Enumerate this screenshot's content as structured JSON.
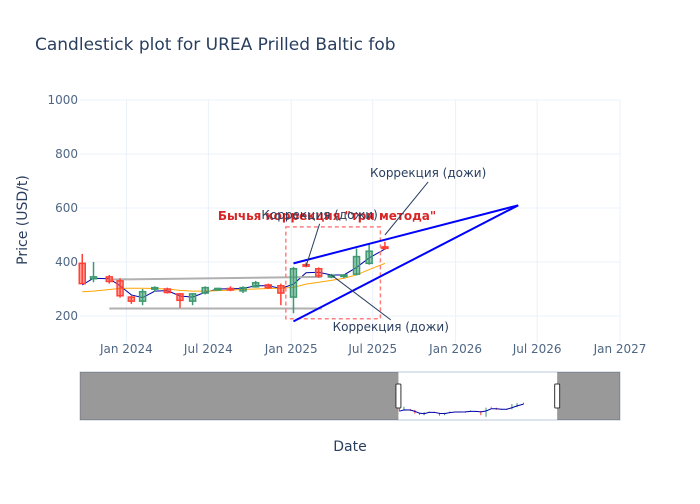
{
  "chart_data": {
    "type": "candlestick",
    "title": "Candlestick plot for UREA Prilled Baltic fob",
    "xlabel": "Date",
    "ylabel": "Price (USD/t)",
    "ylim": [
      100,
      1000
    ],
    "xlim": [
      "2023-09-20",
      "2027-01-01"
    ],
    "y_ticks": [
      200,
      400,
      600,
      800,
      1000
    ],
    "x_ticks": [
      {
        "date": "2024-01-01",
        "label": "Jan 2024"
      },
      {
        "date": "2024-07-01",
        "label": "Jul 2024"
      },
      {
        "date": "2025-01-01",
        "label": "Jan 2025"
      },
      {
        "date": "2025-07-01",
        "label": "Jul 2025"
      },
      {
        "date": "2026-01-01",
        "label": "Jan 2026"
      },
      {
        "date": "2026-07-01",
        "label": "Jul 2026"
      },
      {
        "date": "2027-01-01",
        "label": "Jan 2027"
      }
    ],
    "grid": true,
    "colors": {
      "increasing": "#3d9970",
      "decreasing": "#ff4136",
      "moving_average_fast": "#0000aa",
      "moving_average_slow": "#ffa500",
      "trend_lines": "#0000ff",
      "support_resistance": "#b0b0b0",
      "pattern_box": "#ff7f7f",
      "pattern_label": "#d62728",
      "annotation": "#2a3f5f"
    },
    "candles": [
      {
        "date": "2023-09-25",
        "open": 395,
        "high": 430,
        "low": 320,
        "close": 320
      },
      {
        "date": "2023-10-20",
        "open": 338,
        "high": 400,
        "low": 325,
        "close": 345
      },
      {
        "date": "2023-11-24",
        "open": 345,
        "high": 352,
        "low": 320,
        "close": 328
      },
      {
        "date": "2023-12-18",
        "open": 330,
        "high": 340,
        "low": 268,
        "close": 275
      },
      {
        "date": "2024-01-12",
        "open": 270,
        "high": 275,
        "low": 245,
        "close": 255
      },
      {
        "date": "2024-02-06",
        "open": 255,
        "high": 300,
        "low": 240,
        "close": 290
      },
      {
        "date": "2024-03-04",
        "open": 300,
        "high": 310,
        "low": 290,
        "close": 305
      },
      {
        "date": "2024-04-01",
        "open": 300,
        "high": 305,
        "low": 283,
        "close": 287
      },
      {
        "date": "2024-04-29",
        "open": 282,
        "high": 285,
        "low": 230,
        "close": 258
      },
      {
        "date": "2024-05-27",
        "open": 255,
        "high": 285,
        "low": 240,
        "close": 282
      },
      {
        "date": "2024-06-24",
        "open": 285,
        "high": 310,
        "low": 280,
        "close": 305
      },
      {
        "date": "2024-07-22",
        "open": 300,
        "high": 305,
        "low": 295,
        "close": 302
      },
      {
        "date": "2024-08-19",
        "open": 302,
        "high": 310,
        "low": 292,
        "close": 298
      },
      {
        "date": "2024-09-16",
        "open": 293,
        "high": 310,
        "low": 285,
        "close": 305
      },
      {
        "date": "2024-10-14",
        "open": 308,
        "high": 330,
        "low": 305,
        "close": 323
      },
      {
        "date": "2024-11-11",
        "open": 315,
        "high": 320,
        "low": 300,
        "close": 305
      },
      {
        "date": "2024-12-09",
        "open": 312,
        "high": 320,
        "low": 240,
        "close": 285
      },
      {
        "date": "2025-01-06",
        "open": 270,
        "high": 382,
        "low": 210,
        "close": 375
      },
      {
        "date": "2025-02-03",
        "open": 390,
        "high": 398,
        "low": 380,
        "close": 385
      },
      {
        "date": "2025-03-03",
        "open": 375,
        "high": 380,
        "low": 342,
        "close": 348
      },
      {
        "date": "2025-03-31",
        "open": 345,
        "high": 356,
        "low": 340,
        "close": 350
      },
      {
        "date": "2025-04-28",
        "open": 348,
        "high": 355,
        "low": 340,
        "close": 352
      },
      {
        "date": "2025-05-26",
        "open": 355,
        "high": 450,
        "low": 350,
        "close": 420
      },
      {
        "date": "2025-06-23",
        "open": 395,
        "high": 468,
        "low": 390,
        "close": 440
      },
      {
        "date": "2025-07-28",
        "open": 456,
        "high": 475,
        "low": 445,
        "close": 454
      }
    ],
    "moving_averages": [
      {
        "name": "fast",
        "points": [
          [
            "2023-09-25",
            315
          ],
          [
            "2023-10-20",
            340
          ],
          [
            "2023-11-24",
            338
          ],
          [
            "2023-12-18",
            312
          ],
          [
            "2024-01-12",
            278
          ],
          [
            "2024-02-06",
            268
          ],
          [
            "2024-03-04",
            292
          ],
          [
            "2024-04-01",
            294
          ],
          [
            "2024-04-29",
            274
          ],
          [
            "2024-05-27",
            270
          ],
          [
            "2024-06-24",
            288
          ],
          [
            "2024-07-22",
            300
          ],
          [
            "2024-08-19",
            301
          ],
          [
            "2024-09-16",
            302
          ],
          [
            "2024-10-14",
            312
          ],
          [
            "2024-11-11",
            312
          ],
          [
            "2024-12-09",
            302
          ],
          [
            "2025-01-06",
            318
          ],
          [
            "2025-02-03",
            360
          ],
          [
            "2025-03-03",
            362
          ],
          [
            "2025-03-31",
            352
          ],
          [
            "2025-04-28",
            352
          ],
          [
            "2025-05-26",
            380
          ],
          [
            "2025-06-23",
            415
          ],
          [
            "2025-07-28",
            448
          ]
        ]
      },
      {
        "name": "slow",
        "points": [
          [
            "2023-09-25",
            290
          ],
          [
            "2023-10-20",
            292
          ],
          [
            "2023-11-24",
            298
          ],
          [
            "2023-12-18",
            302
          ],
          [
            "2024-01-12",
            303
          ],
          [
            "2024-02-06",
            303
          ],
          [
            "2024-03-04",
            302
          ],
          [
            "2024-04-01",
            300
          ],
          [
            "2024-04-29",
            295
          ],
          [
            "2024-05-27",
            292
          ],
          [
            "2024-06-24",
            292
          ],
          [
            "2024-07-22",
            294
          ],
          [
            "2024-08-19",
            296
          ],
          [
            "2024-09-16",
            298
          ],
          [
            "2024-10-14",
            300
          ],
          [
            "2024-11-11",
            302
          ],
          [
            "2024-12-09",
            303
          ],
          [
            "2025-01-06",
            306
          ],
          [
            "2025-02-03",
            318
          ],
          [
            "2025-03-03",
            325
          ],
          [
            "2025-03-31",
            332
          ],
          [
            "2025-04-28",
            340
          ],
          [
            "2025-05-26",
            352
          ],
          [
            "2025-06-23",
            372
          ],
          [
            "2025-07-28",
            395
          ]
        ]
      }
    ],
    "support_resistance": [
      {
        "start": [
          "2023-11-24",
          335
        ],
        "end": [
          "2025-03-10",
          345
        ]
      },
      {
        "start": [
          "2023-11-24",
          228
        ],
        "end": [
          "2025-03-10",
          228
        ]
      }
    ],
    "trend_lines": [
      {
        "start": [
          "2025-01-06",
          395
        ],
        "end": [
          "2026-05-20",
          610
        ]
      },
      {
        "start": [
          "2025-01-06",
          180
        ],
        "end": [
          "2026-05-20",
          610
        ]
      }
    ],
    "pattern_box": {
      "x0": "2024-12-20",
      "x1": "2025-07-18",
      "y0": 190,
      "y1": 530,
      "label": "Бычья коррекция \"три метода\""
    },
    "annotations": [
      {
        "text": "Коррекция (дожи)",
        "point": [
          "2025-02-03",
          385
        ],
        "label_at": [
          "2025-03-05",
          560
        ]
      },
      {
        "text": "Коррекция (дожи)",
        "point": [
          "2025-07-28",
          500
        ],
        "label_at": [
          "2025-11-01",
          715
        ]
      },
      {
        "text": "Коррекция (дожи)",
        "point": [
          "2025-03-31",
          352
        ],
        "label_at": [
          "2025-08-10",
          145
        ]
      }
    ],
    "range_slider": {
      "x_ticks_min": "2023-09-20",
      "xmin": "2023-09-20",
      "xmax": "2027-01-01",
      "window_start": "2019-01-01",
      "window_end": "2027-01-01",
      "selected_start": "2023-09-20",
      "selected_end": "2026-01-26"
    }
  }
}
